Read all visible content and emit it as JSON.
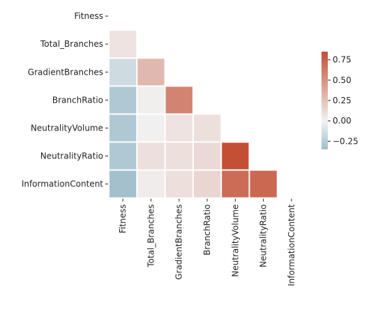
{
  "chart_data": {
    "type": "heatmap",
    "title": "",
    "variables": [
      "Fitness",
      "Total_Branches",
      "GradientBranches",
      "BranchRatio",
      "NeutralityVolume",
      "NeutralityRatio",
      "InformationContent"
    ],
    "mask": "upper-triangle-and-diagonal",
    "matrix": [
      [
        null,
        null,
        null,
        null,
        null,
        null,
        null
      ],
      [
        0.08,
        null,
        null,
        null,
        null,
        null,
        null
      ],
      [
        -0.15,
        0.3,
        null,
        null,
        null,
        null,
        null
      ],
      [
        -0.28,
        0.02,
        0.58,
        null,
        null,
        null,
        null
      ],
      [
        -0.28,
        0.01,
        0.08,
        0.1,
        null,
        null,
        null
      ],
      [
        -0.28,
        0.1,
        0.1,
        0.13,
        0.85,
        null,
        null
      ],
      [
        -0.33,
        0.03,
        0.1,
        0.15,
        0.7,
        0.72,
        null
      ]
    ],
    "colorbar": {
      "range": [
        -0.35,
        0.85
      ],
      "ticks": [
        0.75,
        0.5,
        0.25,
        0.0,
        -0.25
      ],
      "tick_labels": [
        "0.75",
        "0.50",
        "0.25",
        "0.00",
        "−0.25"
      ],
      "colormap": "diverging",
      "colors": {
        "low": "#9fbdcb",
        "mid": "#f2f2f2",
        "high": "#c34f35"
      }
    }
  }
}
